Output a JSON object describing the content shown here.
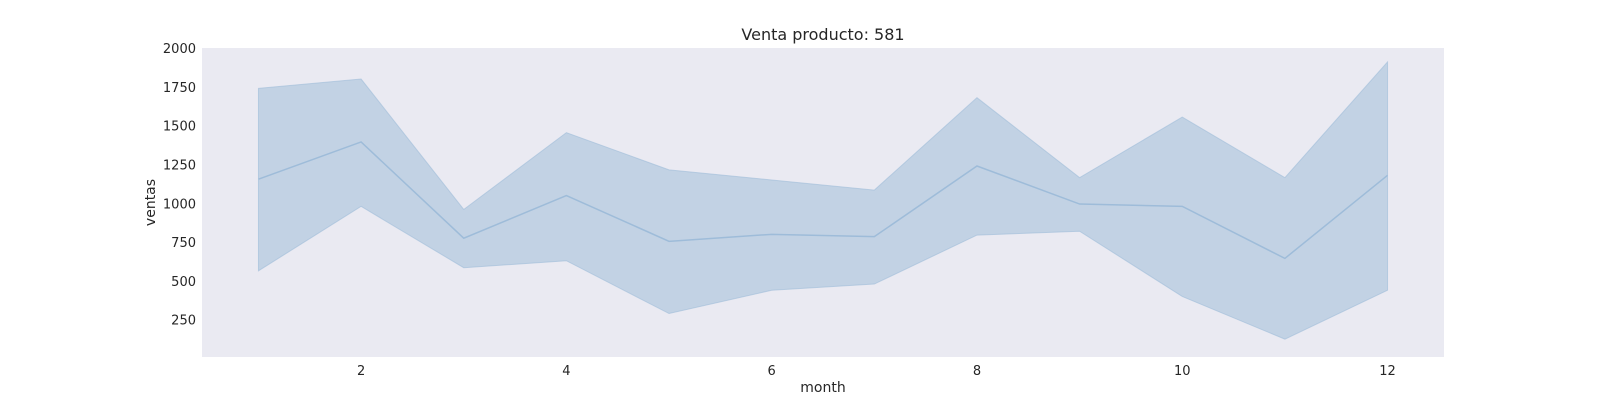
{
  "chart_data": {
    "type": "line",
    "title": "Venta producto: 581",
    "xlabel": "month",
    "ylabel": "ventas",
    "x": [
      1,
      2,
      3,
      4,
      5,
      6,
      7,
      8,
      9,
      10,
      11,
      12
    ],
    "series": [
      {
        "values": [
          1155,
          1395,
          775,
          1050,
          755,
          800,
          785,
          1240,
          995,
          980,
          645,
          1180
        ],
        "band_lower": [
          565,
          980,
          585,
          630,
          290,
          440,
          480,
          795,
          820,
          400,
          125,
          440
        ],
        "band_upper": [
          1740,
          1800,
          960,
          1455,
          1215,
          1150,
          1085,
          1680,
          1165,
          1555,
          1165,
          1910
        ]
      }
    ],
    "xticks": [
      2,
      4,
      6,
      8,
      10,
      12
    ],
    "yticks": [
      250,
      500,
      750,
      1000,
      1250,
      1500,
      1750,
      2000
    ],
    "xlim": [
      0.45,
      12.55
    ],
    "ylim": [
      10,
      2000
    ],
    "grid": false,
    "colors": {
      "plot_background": "#eaeaf2",
      "line": "#9ebcd9",
      "band": "#c2d2e4"
    }
  }
}
